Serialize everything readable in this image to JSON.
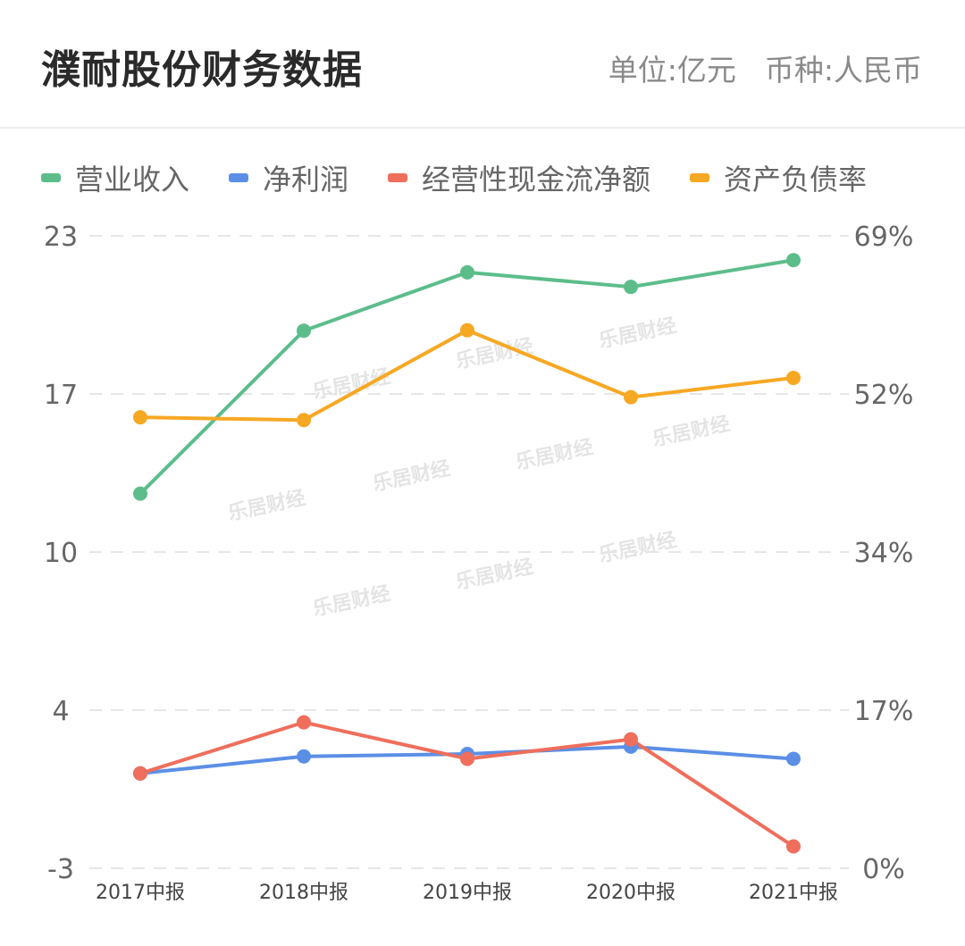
{
  "header": {
    "title": "濮耐股份财务数据",
    "unit": "单位:亿元",
    "currency": "币种:人民币"
  },
  "watermark": "乐居财经",
  "chart_data": {
    "type": "line",
    "categories": [
      "2017中报",
      "2018中报",
      "2019中报",
      "2020中报",
      "2021中报"
    ],
    "y_left": {
      "ticks": [
        "23",
        "17",
        "10",
        "4",
        "-3"
      ],
      "range": [
        -3,
        23
      ]
    },
    "y_right": {
      "ticks": [
        "69%",
        "52%",
        "34%",
        "17%",
        "0%"
      ],
      "range": [
        0,
        69
      ]
    },
    "grid": "dashed-horizontal",
    "legend_position": "top-left",
    "series": [
      {
        "name": "营业收入",
        "axis": "left",
        "color": "#5cbd8b",
        "values": [
          12.4,
          19.1,
          21.5,
          20.9,
          22.0
        ]
      },
      {
        "name": "净利润",
        "axis": "left",
        "color": "#5b8fe6",
        "values": [
          0.9,
          1.6,
          1.7,
          2.0,
          1.5
        ]
      },
      {
        "name": "经营性现金流净额",
        "axis": "left",
        "color": "#ef6e5c",
        "values": [
          0.9,
          3.0,
          1.5,
          2.3,
          -2.1
        ]
      },
      {
        "name": "资产负债率",
        "axis": "right",
        "color": "#f7a823",
        "values": [
          49.2,
          48.9,
          58.7,
          51.4,
          53.5
        ],
        "unit": "%"
      }
    ]
  }
}
